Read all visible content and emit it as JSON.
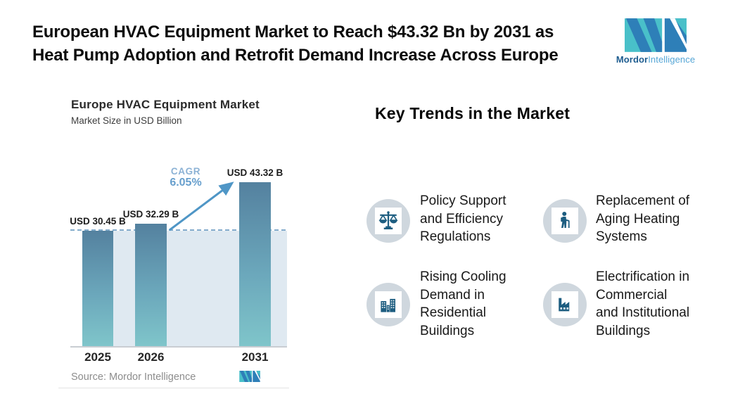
{
  "header": {
    "title": "European HVAC Equipment Market to Reach $43.32 Bn by 2031 as\nHeat Pump Adoption and Retrofit Demand Increase Across Europe",
    "brand": {
      "name_bold": "Mordor",
      "name_light": "Intelligence"
    }
  },
  "chart": {
    "title": "Europe HVAC Equipment Market",
    "subtitle": "Market Size in USD Billion",
    "cagr_label": "CAGR",
    "cagr_value": "6.05%",
    "source": "Source: Mordor Intelligence"
  },
  "chart_data": {
    "type": "bar",
    "title": "Europe HVAC Equipment Market",
    "ylabel": "Market Size in USD Billion",
    "categories": [
      "2025",
      "2026",
      "2031"
    ],
    "values": [
      30.45,
      32.29,
      43.32
    ],
    "bar_labels": [
      "USD 30.45 B",
      "USD 32.29 B",
      "USD 43.32 B"
    ],
    "annotations": [
      "CAGR 6.05%"
    ],
    "baseline_value": 30.45,
    "ylim": [
      0,
      45
    ],
    "grid": false,
    "legend": false
  },
  "trends": {
    "heading": "Key Trends in the Market",
    "items": [
      {
        "icon": "scales-icon",
        "text": "Policy Support\nand Efficiency\nRegulations"
      },
      {
        "icon": "person-cane-icon",
        "text": "Replacement of\nAging Heating\nSystems"
      },
      {
        "icon": "buildings-icon",
        "text": "Rising Cooling\nDemand in\nResidential\nBuildings"
      },
      {
        "icon": "factory-icon",
        "text": "Electrification in\nCommercial\nand Institutional\nBuildings"
      }
    ]
  },
  "colors": {
    "bar_top": "#54819f",
    "bar_bottom": "#7fc5ca",
    "plot_bg": "#dfe9f1",
    "dash_line": "#84accc",
    "arrow": "#4f96c6",
    "cagr_text": "#679fcd",
    "brand_teal": "#49c0c9",
    "brand_blue": "#2e7fb8",
    "icon_glyph": "#1d5d80",
    "icon_circle": "#cfd7de"
  }
}
